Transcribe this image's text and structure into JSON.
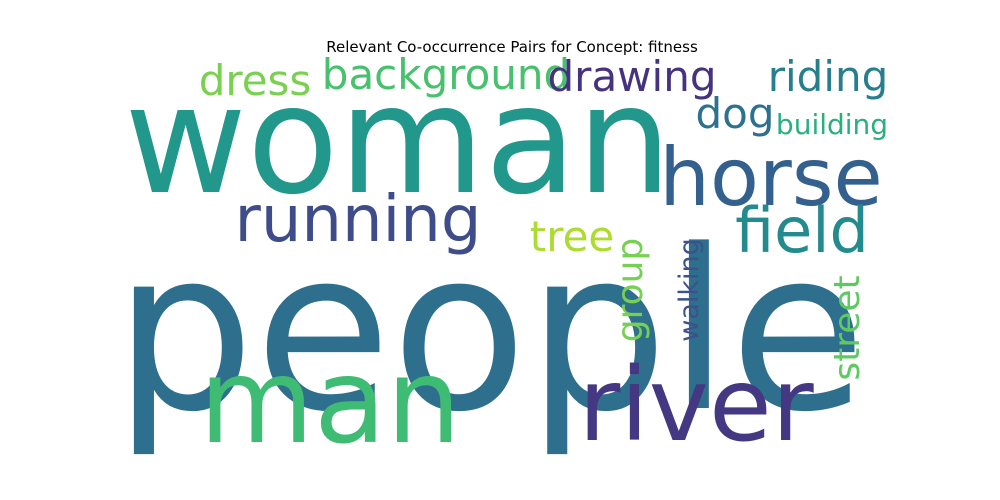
{
  "chart_data": {
    "type": "wordcloud",
    "title": "Relevant Co-occurrence Pairs for Concept: fitness",
    "words": [
      {
        "text": "people",
        "weight": 1.0,
        "color": "#2f6f8e",
        "orientation": "horizontal"
      },
      {
        "text": "woman",
        "weight": 0.8,
        "color": "#21988b",
        "orientation": "horizontal"
      },
      {
        "text": "man",
        "weight": 0.68,
        "color": "#3fbc73",
        "orientation": "horizontal"
      },
      {
        "text": "river",
        "weight": 0.58,
        "color": "#453882",
        "orientation": "horizontal"
      },
      {
        "text": "horse",
        "weight": 0.48,
        "color": "#34608d",
        "orientation": "horizontal"
      },
      {
        "text": "running",
        "weight": 0.4,
        "color": "#3f4c8a",
        "orientation": "horizontal"
      },
      {
        "text": "field",
        "weight": 0.4,
        "color": "#238a8d",
        "orientation": "horizontal"
      },
      {
        "text": "background",
        "weight": 0.32,
        "color": "#48c16e",
        "orientation": "horizontal"
      },
      {
        "text": "drawing",
        "weight": 0.31,
        "color": "#46327e",
        "orientation": "horizontal"
      },
      {
        "text": "dress",
        "weight": 0.31,
        "color": "#7ad151",
        "orientation": "horizontal"
      },
      {
        "text": "riding",
        "weight": 0.3,
        "color": "#277f8e",
        "orientation": "horizontal"
      },
      {
        "text": "tree",
        "weight": 0.29,
        "color": "#addc30",
        "orientation": "horizontal"
      },
      {
        "text": "dog",
        "weight": 0.29,
        "color": "#2d718e",
        "orientation": "horizontal"
      },
      {
        "text": "street",
        "weight": 0.26,
        "color": "#5ec962",
        "orientation": "vertical"
      },
      {
        "text": "group",
        "weight": 0.26,
        "color": "#75d054",
        "orientation": "vertical"
      },
      {
        "text": "building",
        "weight": 0.21,
        "color": "#2ab07f",
        "orientation": "horizontal"
      },
      {
        "text": "walking",
        "weight": 0.2,
        "color": "#3b528b",
        "orientation": "vertical"
      }
    ]
  }
}
